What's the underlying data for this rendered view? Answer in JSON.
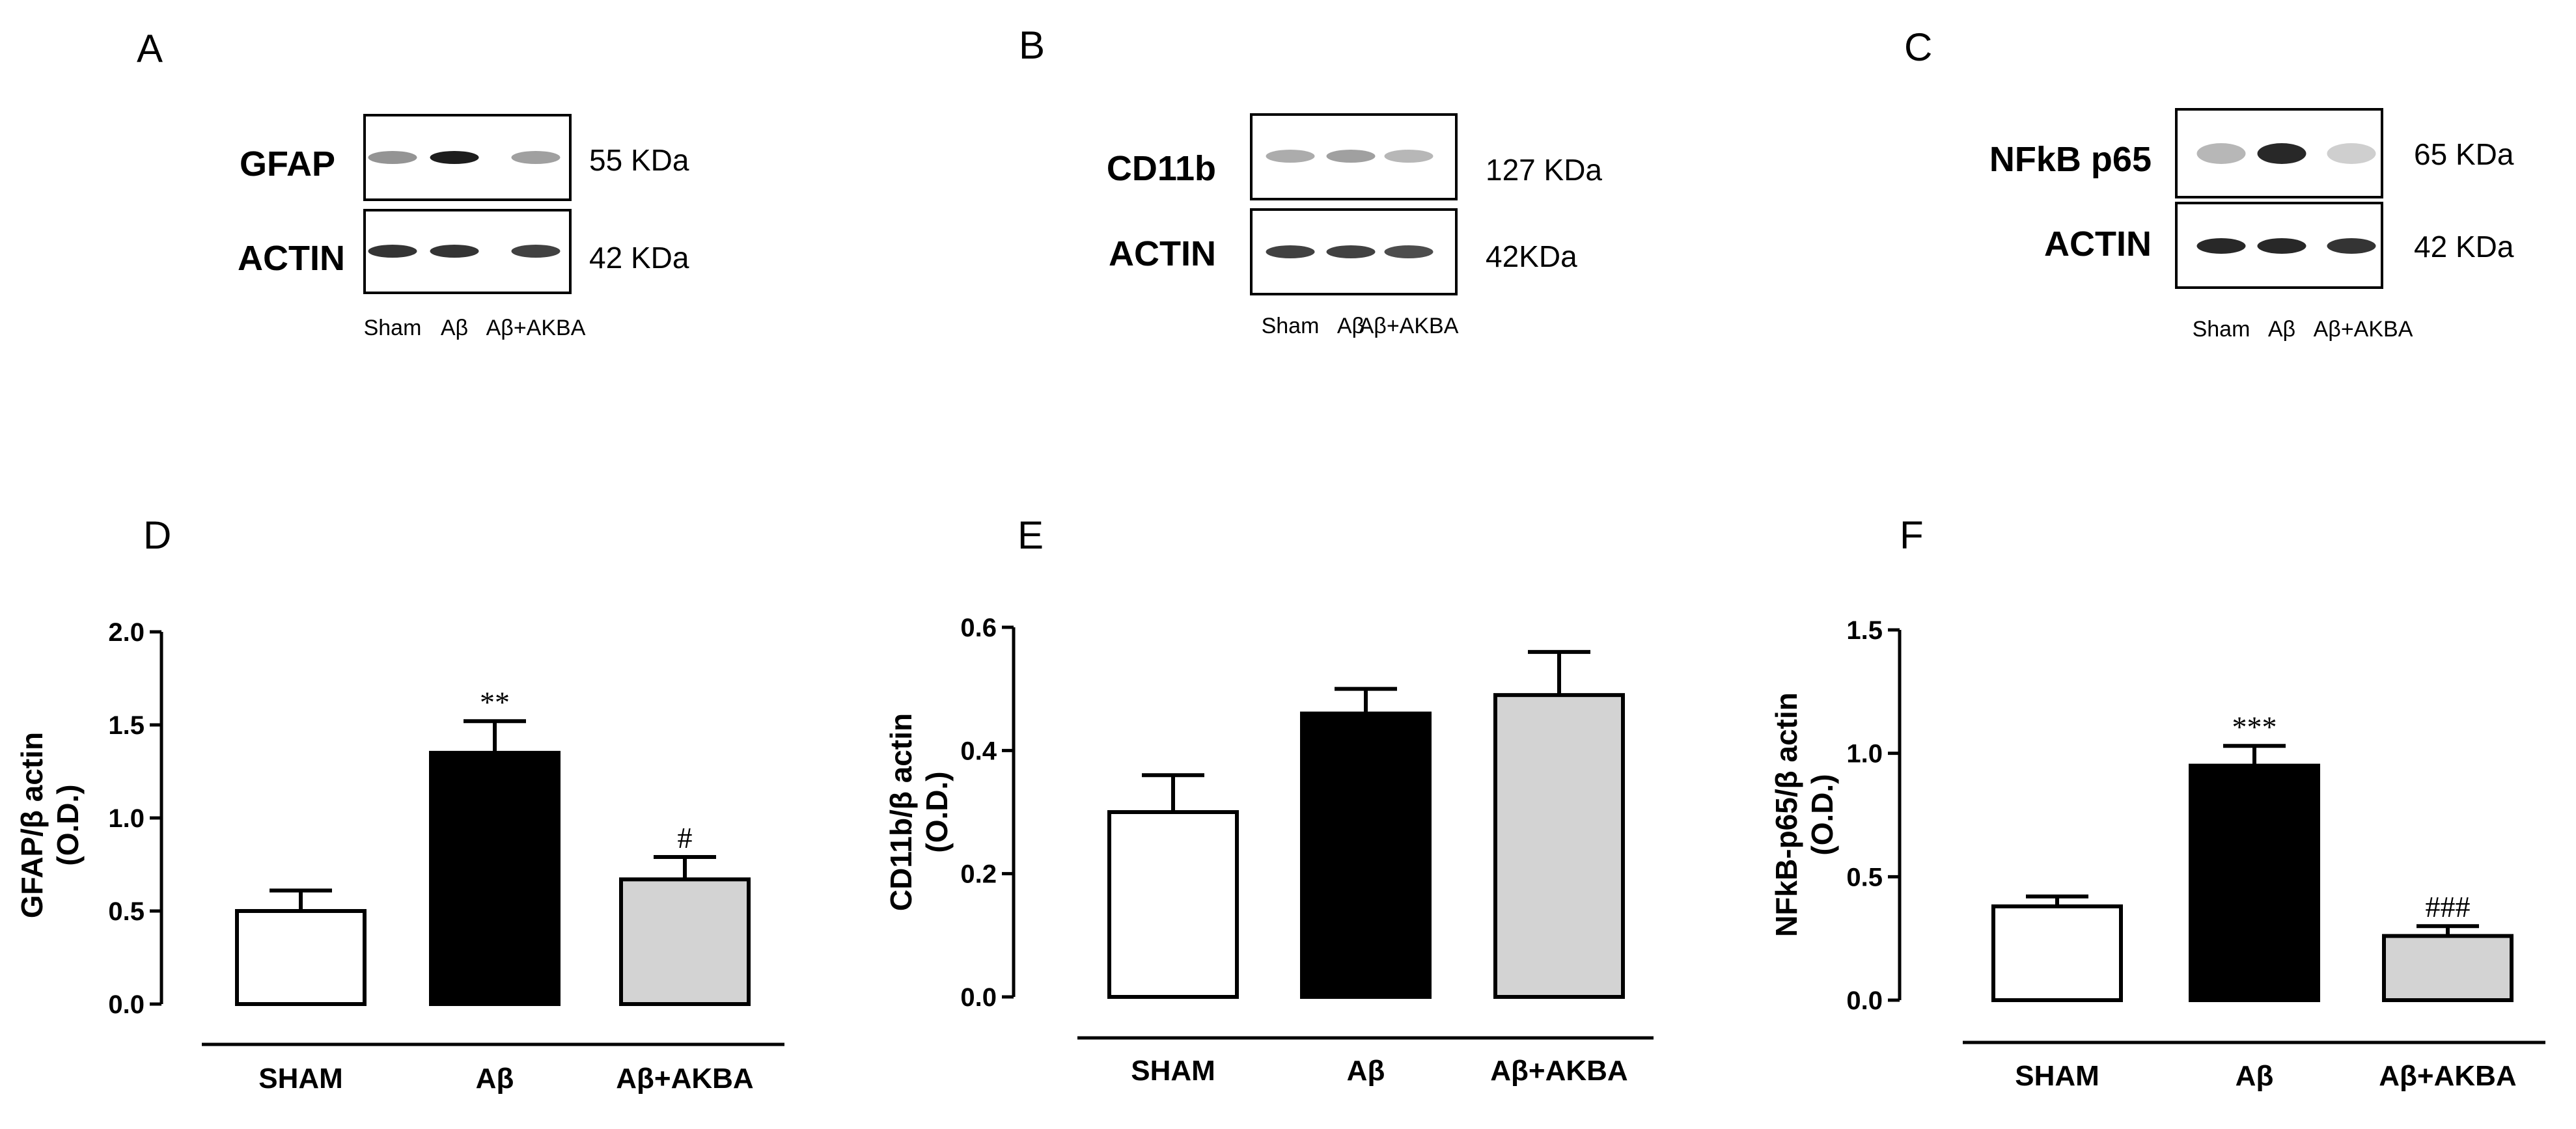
{
  "blots": [
    {
      "panel": "A",
      "lanes": [
        "Sham",
        "Aβ",
        "Aβ+AKBA"
      ],
      "rows": [
        {
          "protein": "GFAP",
          "weight": "55 KDa",
          "band_intensity": [
            0.45,
            0.95,
            0.4
          ]
        },
        {
          "protein": "ACTIN",
          "weight": "42 KDa",
          "band_intensity": [
            0.85,
            0.85,
            0.8
          ]
        }
      ]
    },
    {
      "panel": "B",
      "lanes": [
        "Sham",
        "Aβ",
        "Aβ+AKBA"
      ],
      "rows": [
        {
          "protein": "CD11b",
          "weight": "127 KDa",
          "band_intensity": [
            0.35,
            0.4,
            0.3
          ]
        },
        {
          "protein": "ACTIN",
          "weight": "42KDa",
          "band_intensity": [
            0.8,
            0.8,
            0.75
          ]
        }
      ]
    },
    {
      "panel": "C",
      "lanes": [
        "Sham",
        "Aβ",
        "Aβ+AKBA"
      ],
      "rows": [
        {
          "protein": "NFkB p65",
          "weight": "65 KDa",
          "band_intensity": [
            0.3,
            0.9,
            0.2
          ]
        },
        {
          "protein": "ACTIN",
          "weight": "42 KDa",
          "band_intensity": [
            0.9,
            0.9,
            0.85
          ]
        }
      ]
    }
  ],
  "chart_data": [
    {
      "panel": "D",
      "type": "bar",
      "categories": [
        "SHAM",
        "Aβ",
        "Aβ+AKBA"
      ],
      "values": [
        0.5,
        1.35,
        0.67
      ],
      "errors": [
        0.11,
        0.17,
        0.12
      ],
      "annotations": [
        "",
        "**",
        "#"
      ],
      "bar_colors": [
        "#ffffff",
        "#000000",
        "#d3d3d3"
      ],
      "ylabel": "GFAP/β actin",
      "ylabel2": "(O.D.)",
      "ylim": [
        0,
        2.0
      ],
      "yticks": [
        "0.0",
        "0.5",
        "1.0",
        "1.5",
        "2.0"
      ]
    },
    {
      "panel": "E",
      "type": "bar",
      "categories": [
        "SHAM",
        "Aβ",
        "Aβ+AKBA"
      ],
      "values": [
        0.3,
        0.46,
        0.49
      ],
      "errors": [
        0.06,
        0.04,
        0.07
      ],
      "annotations": [
        "",
        "",
        ""
      ],
      "bar_colors": [
        "#ffffff",
        "#000000",
        "#d3d3d3"
      ],
      "ylabel": "CD11b/β actin",
      "ylabel2": "(O.D.)",
      "ylim": [
        0,
        0.6
      ],
      "yticks": [
        "0.0",
        "0.2",
        "0.4",
        "0.6"
      ]
    },
    {
      "panel": "F",
      "type": "bar",
      "categories": [
        "SHAM",
        "Aβ",
        "Aβ+AKBA"
      ],
      "values": [
        0.38,
        0.95,
        0.26
      ],
      "errors": [
        0.04,
        0.08,
        0.04
      ],
      "annotations": [
        "",
        "***",
        "###"
      ],
      "bar_colors": [
        "#ffffff",
        "#000000",
        "#d3d3d3"
      ],
      "ylabel": "NFkB-p65/β actin",
      "ylabel2": "(O.D.)",
      "ylim": [
        0,
        1.5
      ],
      "yticks": [
        "0.0",
        "0.5",
        "1.0",
        "1.5"
      ]
    }
  ]
}
